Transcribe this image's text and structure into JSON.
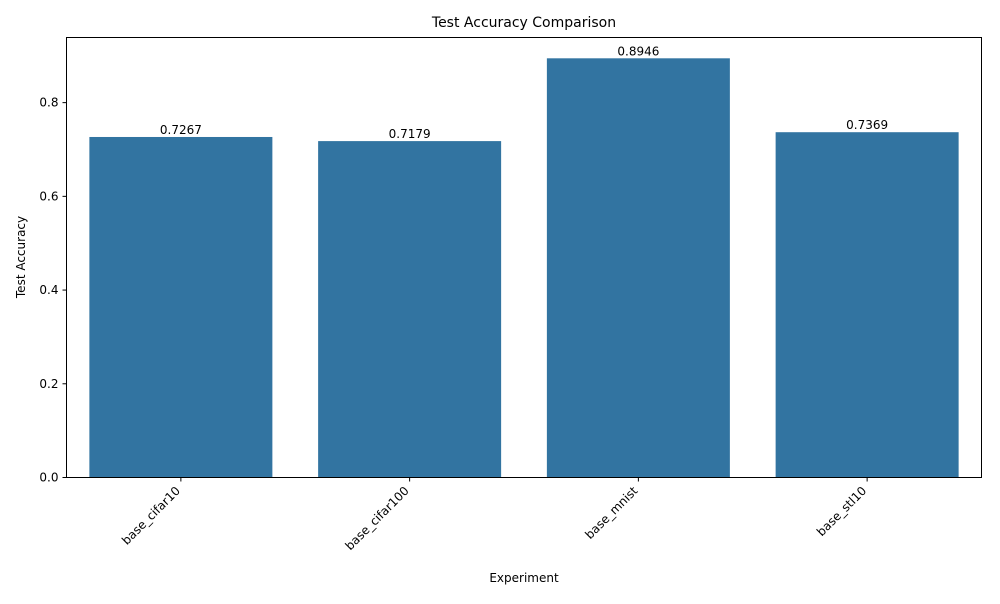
{
  "chart_data": {
    "type": "bar",
    "title": "Test Accuracy Comparison",
    "xlabel": "Experiment",
    "ylabel": "Test Accuracy",
    "categories": [
      "base_cifar10",
      "base_cifar100",
      "base_mnist",
      "base_stl10"
    ],
    "values": [
      0.7267,
      0.7179,
      0.8946,
      0.7369
    ],
    "value_labels": [
      "0.7267",
      "0.7179",
      "0.8946",
      "0.7369"
    ],
    "ylim": [
      0,
      0.939
    ],
    "yticks": [
      0.0,
      0.2,
      0.4,
      0.6,
      0.8
    ],
    "ytick_labels": [
      "0.0",
      "0.2",
      "0.4",
      "0.6",
      "0.8"
    ],
    "grid": false,
    "legend": "none",
    "bar_color": "#3274a1",
    "xtick_rotation": "45 degrees, right-aligned"
  }
}
